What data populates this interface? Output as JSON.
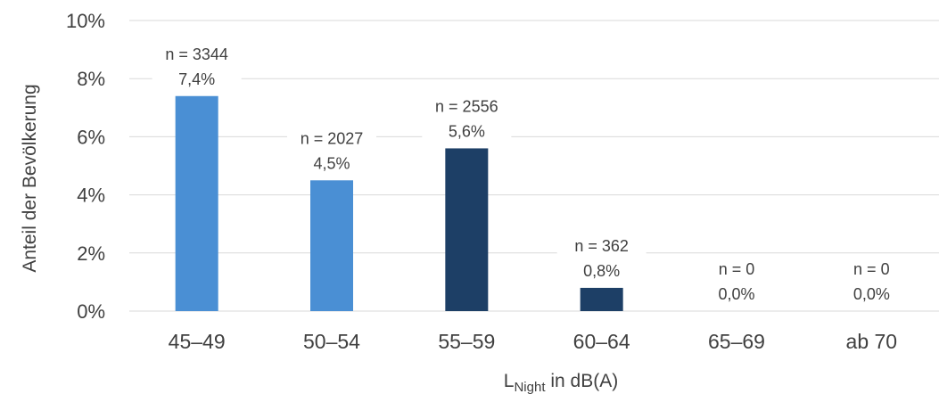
{
  "chart_data": {
    "type": "bar",
    "title": "",
    "ylabel": "Anteil der Bevölkerung",
    "xlabel": {
      "base": "L",
      "subscript": "Night",
      "suffix": " in dB(A)"
    },
    "ylim": [
      0,
      10
    ],
    "yticks": [
      "0%",
      "2%",
      "4%",
      "6%",
      "8%",
      "10%"
    ],
    "grid": true,
    "categories": [
      "45–49",
      "50–54",
      "55–59",
      "60–64",
      "65–69",
      "ab 70"
    ],
    "values": [
      7.4,
      4.5,
      5.6,
      0.8,
      0.0,
      0.0
    ],
    "value_labels": [
      "7,4%",
      "4,5%",
      "5,6%",
      "0,8%",
      "0,0%",
      "0,0%"
    ],
    "n_labels": [
      "n = 3344",
      "n = 2027",
      "n = 2556",
      "n = 362",
      "n = 0",
      "n = 0"
    ],
    "colors": [
      "#4a8fd4",
      "#4a8fd4",
      "#1d3f66",
      "#1d3f66",
      "#1d3f66",
      "#1d3f66"
    ],
    "gridline_color": "#d9d9d9"
  }
}
